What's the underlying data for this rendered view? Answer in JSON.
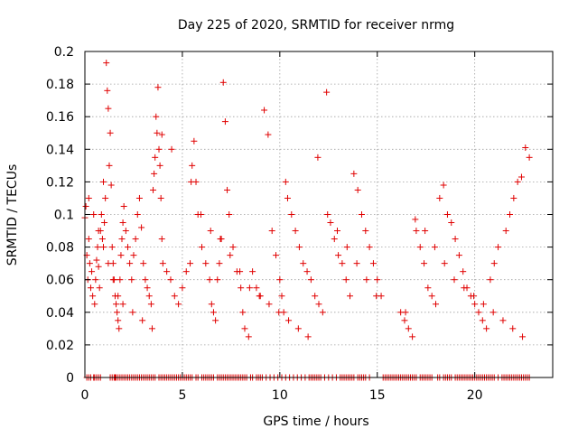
{
  "chart_data": {
    "type": "scatter",
    "title": "Day 225 of 2020, SRMTID for receiver nrmg",
    "xlabel": "GPS time / hours",
    "ylabel": "SRMTID / TECUs",
    "xlim": [
      0,
      24
    ],
    "ylim": [
      0,
      0.2
    ],
    "x_ticks": [
      0,
      5,
      10,
      15,
      20
    ],
    "x_tick_labels": [
      "0",
      "5",
      "10",
      "15",
      "20"
    ],
    "y_ticks": [
      0,
      0.02,
      0.04,
      0.06,
      0.08,
      0.1,
      0.12,
      0.14,
      0.16,
      0.18,
      0.2
    ],
    "y_tick_labels": [
      "0",
      "0.02",
      "0.04",
      "0.06",
      "0.08",
      "0.1",
      "0.12",
      "0.14",
      "0.16",
      "0.18",
      "0.2"
    ],
    "grid": true,
    "marker": "+",
    "marker_color": "#e00000",
    "series": [
      {
        "name": "SRMTID",
        "x": [
          0.0,
          0.05,
          0.1,
          0.15,
          0.2,
          0.25,
          0.3,
          0.35,
          0.4,
          0.5,
          0.55,
          0.6,
          0.65,
          0.7,
          0.75,
          0.8,
          0.85,
          0.9,
          0.95,
          1.0,
          1.05,
          1.1,
          1.15,
          1.2,
          1.25,
          1.3,
          1.35,
          1.4,
          1.45,
          1.5,
          1.55,
          1.6,
          1.65,
          1.7,
          1.75,
          1.8,
          1.85,
          1.9,
          1.95,
          2.0,
          2.1,
          2.2,
          2.3,
          2.4,
          2.5,
          2.6,
          2.7,
          2.8,
          2.9,
          3.0,
          3.1,
          3.2,
          3.3,
          3.4,
          3.5,
          3.55,
          3.6,
          3.65,
          3.7,
          3.75,
          3.8,
          3.85,
          3.9,
          3.95,
          4.0,
          4.2,
          4.4,
          4.6,
          4.8,
          5.0,
          5.2,
          5.4,
          5.5,
          5.6,
          5.7,
          5.8,
          6.0,
          6.2,
          6.4,
          6.5,
          6.6,
          6.7,
          6.8,
          6.9,
          7.0,
          7.1,
          7.2,
          7.3,
          7.4,
          7.6,
          7.8,
          8.0,
          8.1,
          8.2,
          8.4,
          8.6,
          8.8,
          9.0,
          9.2,
          9.4,
          9.6,
          9.8,
          10.0,
          10.1,
          10.2,
          10.3,
          10.4,
          10.6,
          10.8,
          11.0,
          11.2,
          11.4,
          11.6,
          11.8,
          12.0,
          12.2,
          12.4,
          12.6,
          12.8,
          13.0,
          13.2,
          13.4,
          13.6,
          13.8,
          14.0,
          14.2,
          14.4,
          14.6,
          14.8,
          15.0,
          15.2,
          16.2,
          16.4,
          16.6,
          16.8,
          17.0,
          17.2,
          17.4,
          17.6,
          17.8,
          18.0,
          18.2,
          18.4,
          18.6,
          18.8,
          19.0,
          19.2,
          19.4,
          19.6,
          19.8,
          20.0,
          20.2,
          20.4,
          20.6,
          20.8,
          21.0,
          21.2,
          21.6,
          21.8,
          22.0,
          22.2,
          22.4,
          22.6,
          22.8,
          0.2,
          0.45,
          0.7,
          0.95,
          1.2,
          1.45,
          1.7,
          1.95,
          2.45,
          2.95,
          3.45,
          3.95,
          4.45,
          5.45,
          5.95,
          6.45,
          6.95,
          7.45,
          7.95,
          8.45,
          8.95,
          9.45,
          9.95,
          10.45,
          10.95,
          11.45,
          11.95,
          12.45,
          12.95,
          13.45,
          13.95,
          14.45,
          14.95,
          16.45,
          16.95,
          17.45,
          17.95,
          18.45,
          18.95,
          19.45,
          19.95,
          20.45,
          20.95,
          21.45,
          21.95,
          22.45
        ],
        "y": [
          0.098,
          0.105,
          0.075,
          0.06,
          0.085,
          0.07,
          0.055,
          0.065,
          0.05,
          0.045,
          0.06,
          0.072,
          0.08,
          0.068,
          0.055,
          0.09,
          0.1,
          0.085,
          0.12,
          0.095,
          0.11,
          0.193,
          0.176,
          0.165,
          0.13,
          0.15,
          0.118,
          0.08,
          0.07,
          0.06,
          0.05,
          0.045,
          0.04,
          0.035,
          0.03,
          0.06,
          0.075,
          0.085,
          0.095,
          0.105,
          0.09,
          0.08,
          0.07,
          0.06,
          0.075,
          0.085,
          0.1,
          0.11,
          0.092,
          0.07,
          0.06,
          0.055,
          0.05,
          0.045,
          0.115,
          0.125,
          0.135,
          0.16,
          0.15,
          0.178,
          0.14,
          0.13,
          0.11,
          0.085,
          0.07,
          0.065,
          0.06,
          0.05,
          0.045,
          0.055,
          0.065,
          0.07,
          0.13,
          0.145,
          0.12,
          0.1,
          0.08,
          0.07,
          0.06,
          0.045,
          0.04,
          0.035,
          0.06,
          0.07,
          0.085,
          0.181,
          0.157,
          0.115,
          0.1,
          0.08,
          0.065,
          0.055,
          0.04,
          0.03,
          0.025,
          0.065,
          0.055,
          0.05,
          0.164,
          0.149,
          0.09,
          0.075,
          0.06,
          0.05,
          0.04,
          0.12,
          0.11,
          0.1,
          0.09,
          0.08,
          0.07,
          0.065,
          0.06,
          0.05,
          0.045,
          0.04,
          0.175,
          0.095,
          0.085,
          0.075,
          0.07,
          0.06,
          0.05,
          0.125,
          0.115,
          0.1,
          0.09,
          0.08,
          0.07,
          0.06,
          0.05,
          0.04,
          0.035,
          0.03,
          0.025,
          0.09,
          0.08,
          0.07,
          0.055,
          0.05,
          0.045,
          0.11,
          0.118,
          0.1,
          0.095,
          0.085,
          0.075,
          0.065,
          0.055,
          0.05,
          0.045,
          0.04,
          0.035,
          0.03,
          0.06,
          0.07,
          0.08,
          0.09,
          0.1,
          0.11,
          0.12,
          0.123,
          0.141,
          0.135,
          0.11,
          0.1,
          0.09,
          0.08,
          0.07,
          0.06,
          0.05,
          0.045,
          0.04,
          0.035,
          0.03,
          0.149,
          0.14,
          0.12,
          0.1,
          0.09,
          0.085,
          0.075,
          0.065,
          0.055,
          0.05,
          0.045,
          0.04,
          0.035,
          0.03,
          0.025,
          0.135,
          0.1,
          0.09,
          0.08,
          0.07,
          0.06,
          0.05,
          0.04,
          0.097,
          0.09,
          0.08,
          0.07,
          0.06,
          0.055,
          0.05,
          0.045,
          0.04,
          0.035,
          0.03,
          0.025
        ]
      }
    ],
    "zero_points_x": [
      0.1,
      0.2,
      0.3,
      0.45,
      0.5,
      0.6,
      0.7,
      0.8,
      1.3,
      1.4,
      1.5,
      1.55,
      1.6,
      1.7,
      1.8,
      1.9,
      2.0,
      2.1,
      2.2,
      2.3,
      2.4,
      2.5,
      2.6,
      2.7,
      2.8,
      2.9,
      3.0,
      3.1,
      3.2,
      3.3,
      3.4,
      3.5,
      3.6,
      3.8,
      3.9,
      4.0,
      4.1,
      4.2,
      4.3,
      4.4,
      4.5,
      4.6,
      4.7,
      4.8,
      4.9,
      5.0,
      5.1,
      5.2,
      5.3,
      5.4,
      5.5,
      5.7,
      5.8,
      6.0,
      6.1,
      6.2,
      6.3,
      6.4,
      6.5,
      6.6,
      6.8,
      6.9,
      7.0,
      7.1,
      7.2,
      7.3,
      7.4,
      7.5,
      7.6,
      7.7,
      7.8,
      7.9,
      8.0,
      8.1,
      8.2,
      8.3,
      8.5,
      8.6,
      8.8,
      8.9,
      9.0,
      9.1,
      9.3,
      9.5,
      9.7,
      9.9,
      10.1,
      10.3,
      10.5,
      10.7,
      10.9,
      11.1,
      11.3,
      11.5,
      11.6,
      11.7,
      11.8,
      11.9,
      12.0,
      12.1,
      12.3,
      12.5,
      12.7,
      12.9,
      13.1,
      13.2,
      13.3,
      13.4,
      13.5,
      13.6,
      13.7,
      13.8,
      14.0,
      14.1,
      14.2,
      14.3,
      14.4,
      14.6,
      15.3,
      15.4,
      15.5,
      15.6,
      15.7,
      15.8,
      15.9,
      16.0,
      16.1,
      16.2,
      16.3,
      16.4,
      16.5,
      16.6,
      16.7,
      16.8,
      16.9,
      17.0,
      17.2,
      17.3,
      17.4,
      17.5,
      17.6,
      17.7,
      17.8,
      18.1,
      18.2,
      18.4,
      18.5,
      18.6,
      18.7,
      18.8,
      19.0,
      19.1,
      19.2,
      19.3,
      19.4,
      19.5,
      19.6,
      19.7,
      19.8,
      19.9,
      20.0,
      20.1,
      20.2,
      20.3,
      20.4,
      20.5,
      20.6,
      20.7,
      20.8,
      20.9,
      21.0,
      21.2,
      21.4,
      21.5,
      21.6,
      21.7,
      21.8,
      21.9,
      22.0,
      22.1,
      22.2,
      22.3,
      22.4,
      22.5,
      22.6,
      22.7,
      22.8
    ]
  }
}
